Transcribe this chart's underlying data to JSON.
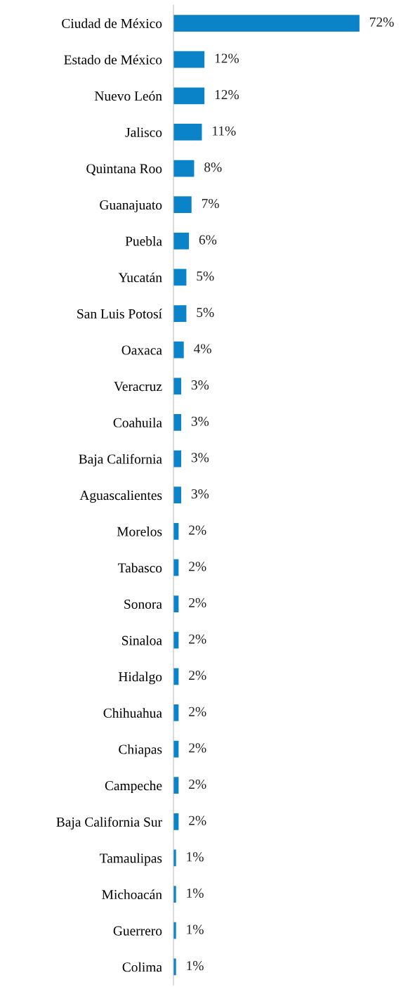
{
  "chart_data": {
    "type": "bar",
    "orientation": "horizontal",
    "tick_labels": "y",
    "grid": false,
    "legend": false,
    "categories": [
      "Ciudad de México",
      "Estado de México",
      "Nuevo León",
      "Jalisco",
      "Quintana Roo",
      "Guanajuato",
      "Puebla",
      "Yucatán",
      "San Luis Potosí",
      "Oaxaca",
      "Veracruz",
      "Coahuila",
      "Baja California",
      "Aguascalientes",
      "Morelos",
      "Tabasco",
      "Sonora",
      "Sinaloa",
      "Hidalgo",
      "Chihuahua",
      "Chiapas",
      "Campeche",
      "Baja California Sur",
      "Tamaulipas",
      "Michoacán",
      "Guerrero",
      "Colima"
    ],
    "values": [
      72,
      12,
      12,
      11,
      8,
      7,
      6,
      5,
      5,
      4,
      3,
      3,
      3,
      3,
      2,
      2,
      2,
      2,
      2,
      2,
      2,
      2,
      2,
      1,
      1,
      1,
      1
    ],
    "value_labels": [
      "72%",
      "12%",
      "12%",
      "11%",
      "8%",
      "7%",
      "6%",
      "5%",
      "5%",
      "4%",
      "3%",
      "3%",
      "3%",
      "3%",
      "2%",
      "2%",
      "2%",
      "2%",
      "2%",
      "2%",
      "2%",
      "2%",
      "2%",
      "1%",
      "1%",
      "1%",
      "1%"
    ],
    "color": "#0a83c9"
  }
}
